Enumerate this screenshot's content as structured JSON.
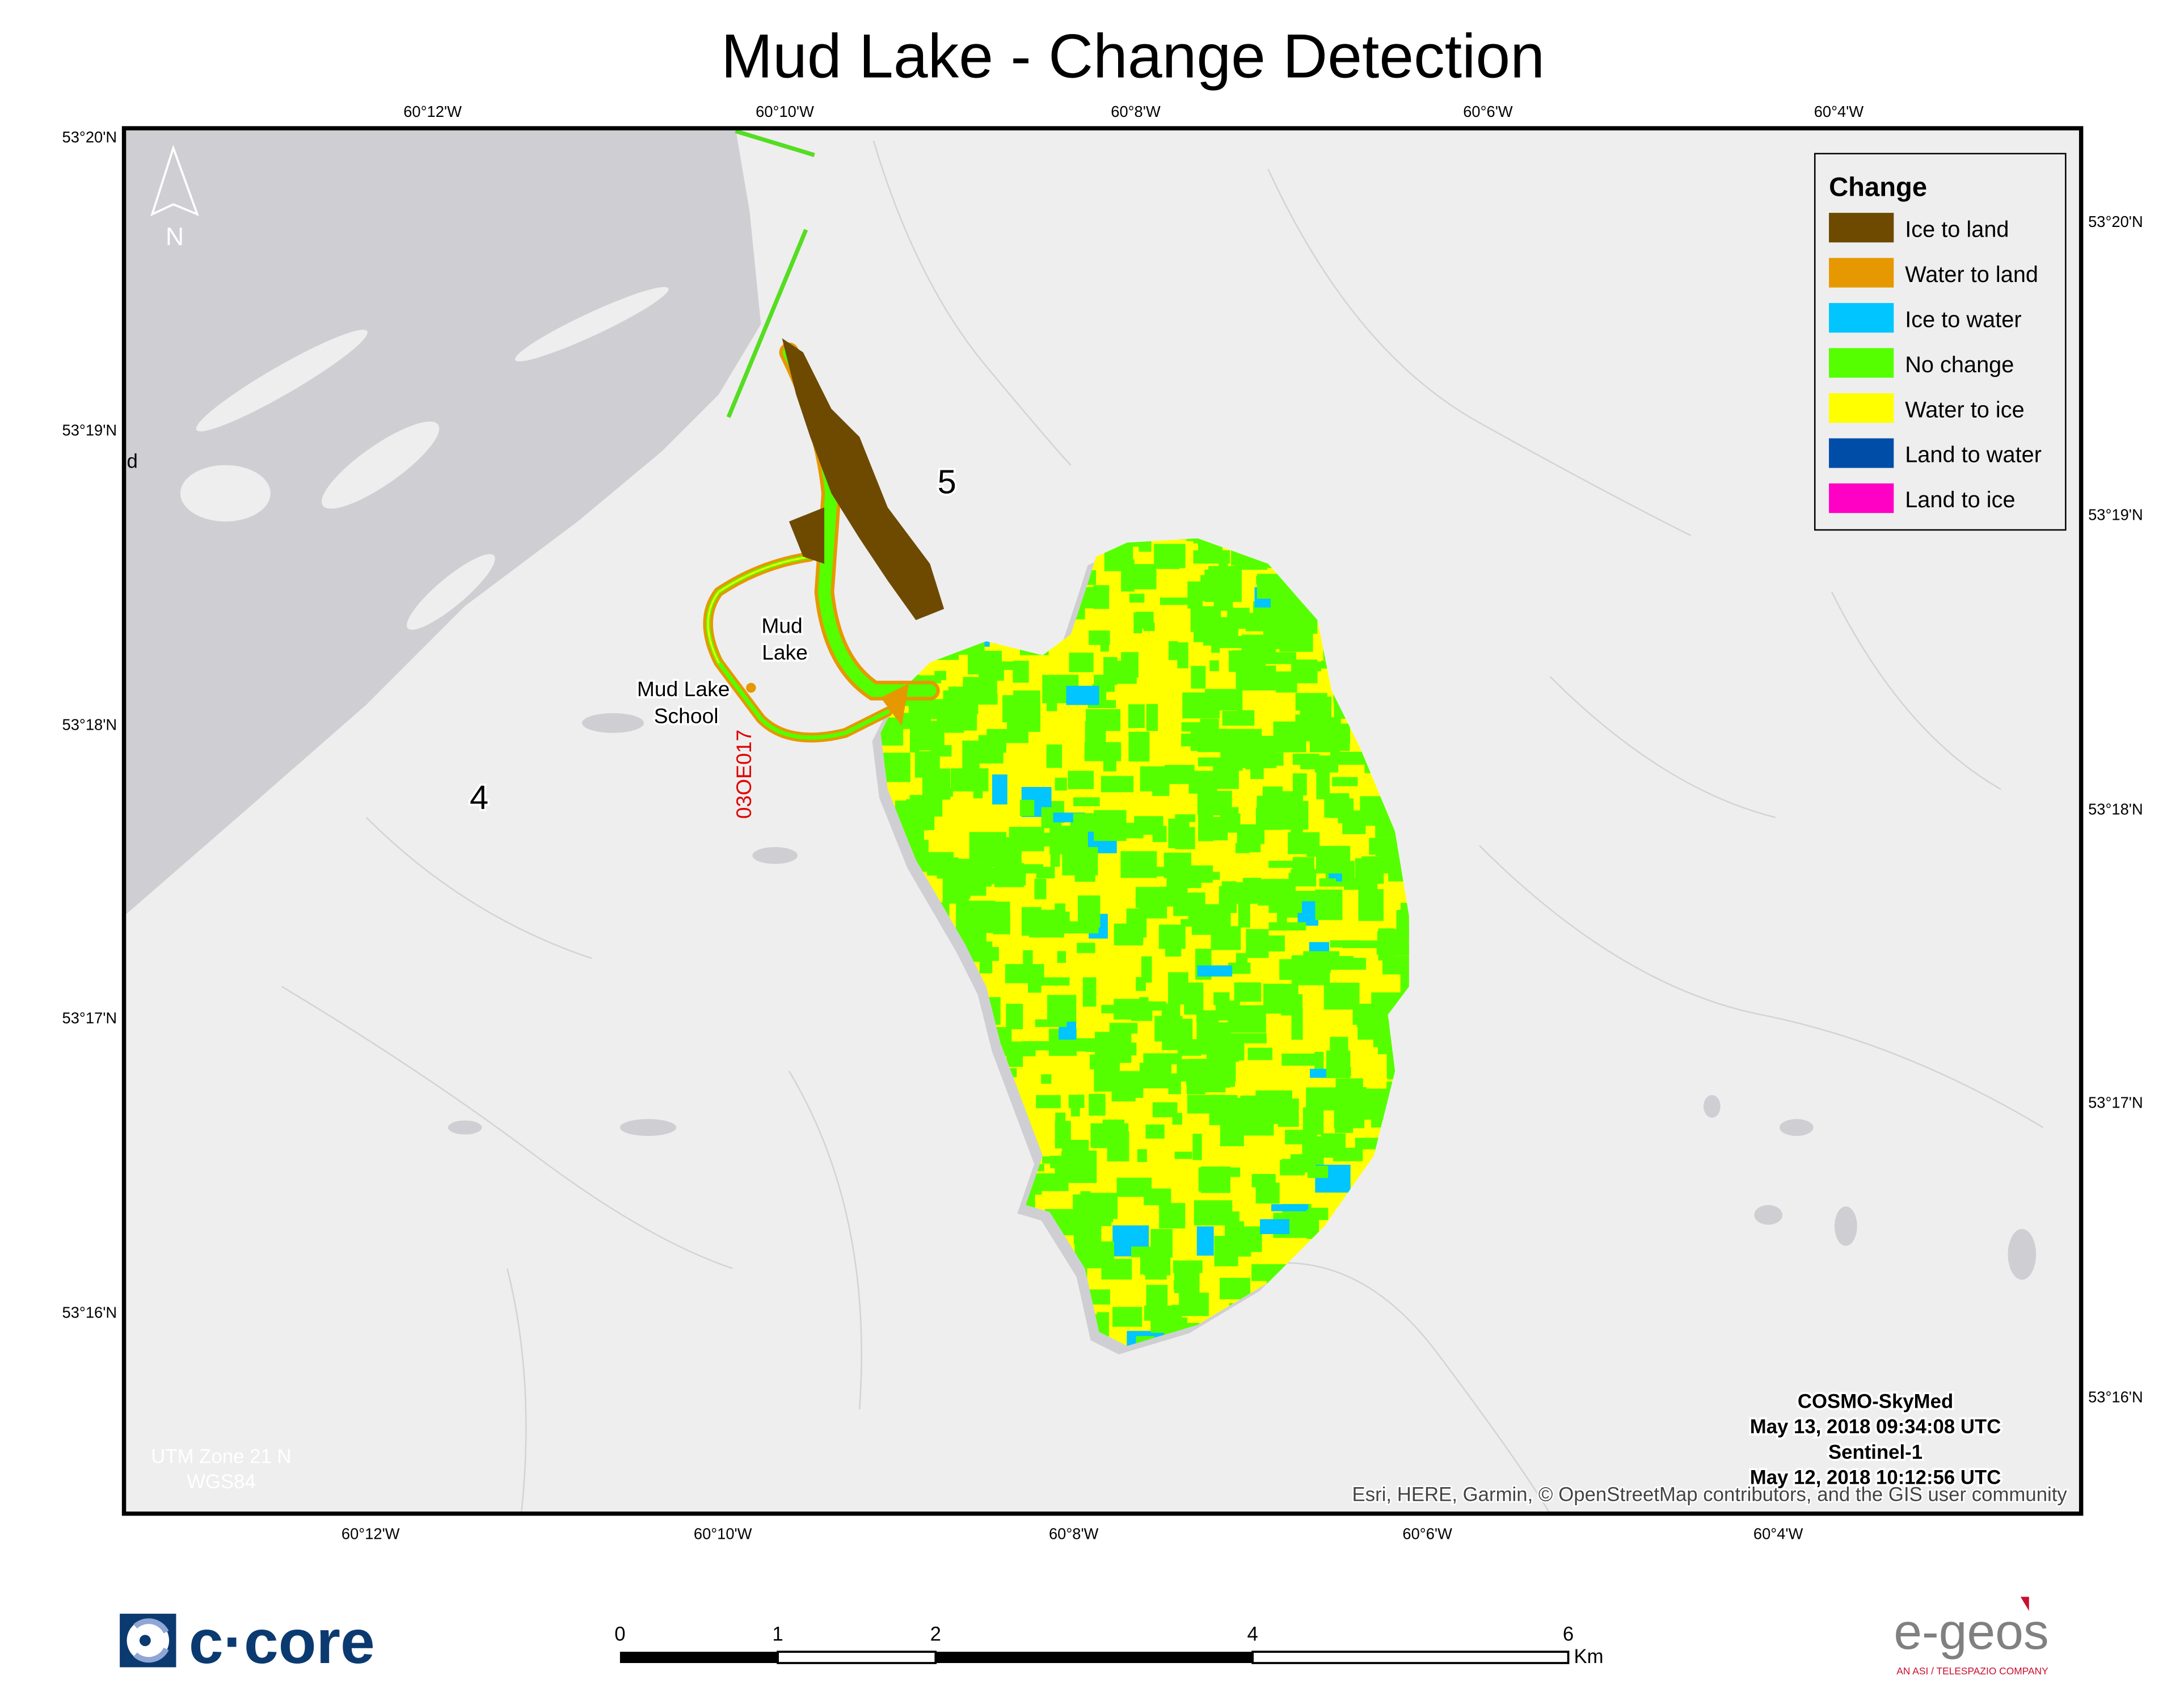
{
  "title": "Mud Lake - Change Detection",
  "graticule": {
    "top_lon": [
      "60°12'W",
      "60°10'W",
      "60°8'W",
      "60°6'W",
      "60°4'W"
    ],
    "bottom_lon": [
      "60°12'W",
      "60°10'W",
      "60°8'W",
      "60°6'W",
      "60°4'W"
    ],
    "left_lat": [
      "53°20'N",
      "53°19'N",
      "53°18'N",
      "53°17'N",
      "53°16'N"
    ],
    "right_lat": [
      "53°20'N",
      "53°19'N",
      "53°18'N",
      "53°17'N",
      "53°16'N"
    ]
  },
  "legend": {
    "title": "Change",
    "items": [
      {
        "label": "Ice to land",
        "color": "#6e4a00"
      },
      {
        "label": "Water to land",
        "color": "#e69800"
      },
      {
        "label": "Ice to water",
        "color": "#00c5ff"
      },
      {
        "label": "No change",
        "color": "#55ff00"
      },
      {
        "label": "Water to ice",
        "color": "#ffff00"
      },
      {
        "label": "Land to water",
        "color": "#004da8"
      },
      {
        "label": "Land to ice",
        "color": "#ff00c5"
      }
    ]
  },
  "map_labels": {
    "zone_5": "5",
    "zone_4": "4",
    "mud_lake": [
      "Mud",
      "Lake"
    ],
    "mud_lake_school": [
      "Mud Lake",
      "School"
    ],
    "station_code": "03OE017",
    "edge_fragment": "d",
    "north": "N"
  },
  "acquisition": {
    "sensor1": "COSMO-SkyMed",
    "date1": "May 13, 2018 09:34:08 UTC",
    "sensor2": "Sentinel-1",
    "date2": "May 12, 2018 10:12:56 UTC"
  },
  "attribution": "Esri, HERE, Garmin, © OpenStreetMap contributors, and the GIS user community",
  "projection": [
    "UTM Zone 21 N",
    "WGS84"
  ],
  "scale_bar": {
    "ticks": [
      "0",
      "1",
      "2",
      "4",
      "6"
    ],
    "unit": "Km"
  },
  "logos": {
    "left": "c·core",
    "right": "e-geos",
    "right_tagline": "AN ASI / TELESPAZIO COMPANY"
  },
  "colors": {
    "land": "#eeeeee",
    "water": "#cfcfd3",
    "frame": "#000000",
    "station": "#e00000"
  }
}
